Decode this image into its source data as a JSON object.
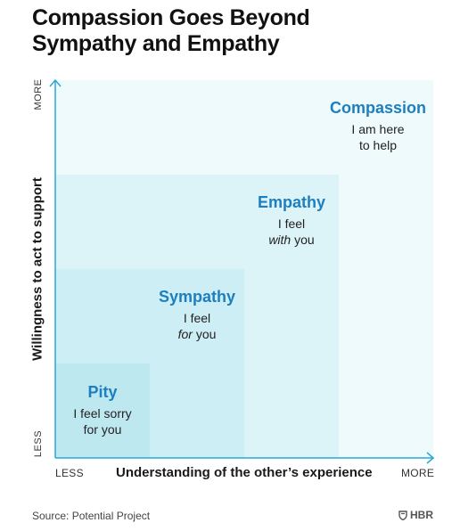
{
  "title": {
    "line1": "Compassion Goes Beyond",
    "line2": "Sympathy and Empathy"
  },
  "axes": {
    "y_title": "Willingness to act to support",
    "y_more": "MORE",
    "y_less": "LESS",
    "x_title": "Understanding of the other’s experience",
    "x_less": "LESS",
    "x_more": "MORE"
  },
  "zones": {
    "pity": {
      "name": "Pity",
      "desc_line1": "I feel sorry",
      "desc_line2": "for you"
    },
    "sympathy": {
      "name": "Sympathy",
      "desc_line1": "I feel",
      "desc_line2_em": "for",
      "desc_line2_rest": " you"
    },
    "empathy": {
      "name": "Empathy",
      "desc_line1": "I feel",
      "desc_line2_em": "with",
      "desc_line2_rest": " you"
    },
    "compassion": {
      "name": "Compassion",
      "desc_line1": "I am here",
      "desc_line2": "to help"
    }
  },
  "footer": {
    "source": "Source: Potential Project",
    "brand": "HBR"
  },
  "colors": {
    "accent": "#1d7fbf",
    "axis": "#2aa7d6",
    "zone_compassion": "#eefafb",
    "zone_empathy": "#dcf3f7",
    "zone_sympathy": "#cdeef4",
    "zone_pity": "#bee8f0"
  },
  "icons": {
    "brand_logo": "shield-icon"
  }
}
